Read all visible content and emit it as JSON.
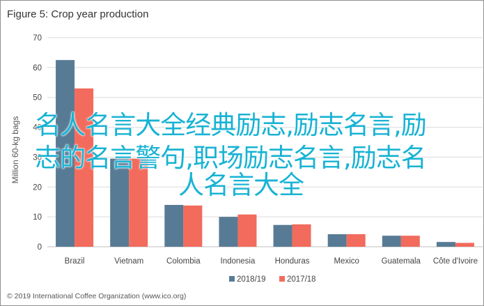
{
  "chart_data": {
    "type": "bar",
    "title": "Figure 5: Crop year production",
    "ylabel": "Million 60-kg bags",
    "ylim": [
      0,
      70
    ],
    "yticks": [
      0,
      10,
      20,
      30,
      40,
      50,
      60,
      70
    ],
    "grid": true,
    "legend_position": "bottom",
    "categories": [
      "Brazil",
      "Vietnam",
      "Colombia",
      "Indonesia",
      "Honduras",
      "Mexico",
      "Guatemala",
      "Côte d'Ivoire"
    ],
    "series": [
      {
        "name": "2018/19",
        "color": "#587b95",
        "values": [
          62.5,
          29.5,
          14,
          10,
          7.3,
          4.2,
          3.7,
          1.6
        ]
      },
      {
        "name": "2017/18",
        "color": "#f26b5c",
        "values": [
          53,
          29.5,
          13.8,
          10.8,
          7.5,
          4.2,
          3.7,
          1.3
        ]
      }
    ],
    "source": "© 2019 International Coffee Organization (www.ico.org)"
  },
  "overlay": {
    "line1": "名人名言大全经典励志,励志名言,励",
    "line2": "志的名言警句,职场励志名言,励志名",
    "line3": "人名言大全"
  }
}
